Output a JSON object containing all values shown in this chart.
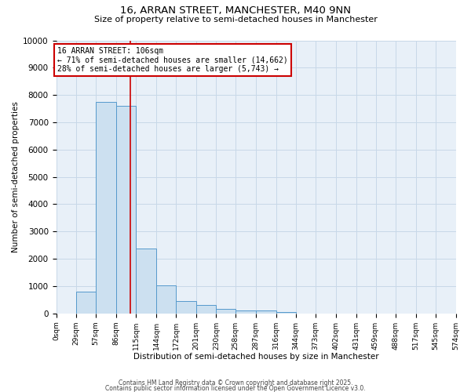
{
  "title1": "16, ARRAN STREET, MANCHESTER, M40 9NN",
  "title2": "Size of property relative to semi-detached houses in Manchester",
  "xlabel": "Distribution of semi-detached houses by size in Manchester",
  "ylabel": "Number of semi-detached properties",
  "bin_edges": [
    0,
    29,
    57,
    86,
    115,
    144,
    172,
    201,
    230,
    258,
    287,
    316,
    344,
    373,
    402,
    431,
    459,
    488,
    517,
    545,
    574
  ],
  "bar_heights": [
    0,
    800,
    7750,
    7600,
    2380,
    1030,
    460,
    300,
    155,
    100,
    95,
    50,
    0,
    0,
    0,
    0,
    0,
    0,
    0,
    0
  ],
  "bar_color": "#cce0f0",
  "bar_edge_color": "#5599cc",
  "property_value": 106,
  "red_line_color": "#cc0000",
  "annotation_text": "16 ARRAN STREET: 106sqm\n← 71% of semi-detached houses are smaller (14,662)\n28% of semi-detached houses are larger (5,743) →",
  "annotation_box_color": "#ffffff",
  "annotation_box_edge": "#cc0000",
  "ylim": [
    0,
    10000
  ],
  "yticks": [
    0,
    1000,
    2000,
    3000,
    4000,
    5000,
    6000,
    7000,
    8000,
    9000,
    10000
  ],
  "grid_color": "#c8d8e8",
  "footer1": "Contains HM Land Registry data © Crown copyright and database right 2025.",
  "footer2": "Contains public sector information licensed under the Open Government Licence v3.0.",
  "background_color": "#e8f0f8",
  "fig_background": "#ffffff",
  "title1_fontsize": 9.5,
  "title2_fontsize": 8,
  "annotation_fontsize": 7,
  "ylabel_fontsize": 7.5,
  "xlabel_fontsize": 7.5,
  "ytick_fontsize": 7.5,
  "xtick_fontsize": 6.5
}
